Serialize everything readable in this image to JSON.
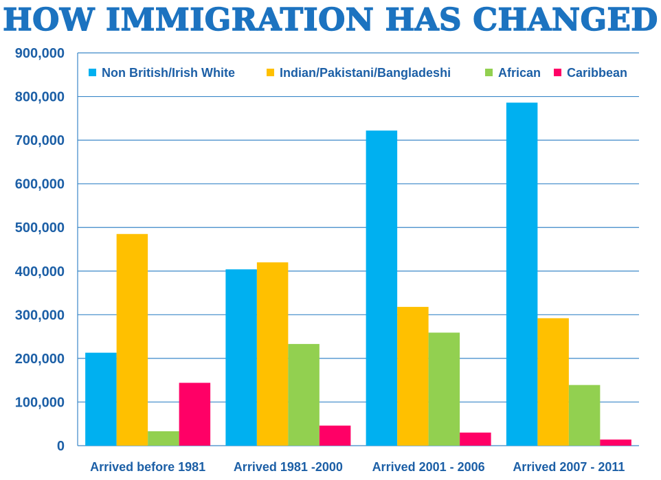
{
  "chart_data": {
    "type": "bar",
    "title": "HOW IMMIGRATION HAS CHANGED",
    "categories": [
      "Arrived before 1981",
      "Arrived 1981 -2000",
      "Arrived 2001 - 2006",
      "Arrived 2007 - 2011"
    ],
    "series": [
      {
        "name": "Non British/Irish White",
        "color": "#00b0f0",
        "values": [
          213000,
          404000,
          722000,
          786000
        ]
      },
      {
        "name": "Indian/Pakistani/Bangladeshi",
        "color": "#ffc000",
        "values": [
          485000,
          420000,
          318000,
          292000
        ]
      },
      {
        "name": "African",
        "color": "#92d050",
        "values": [
          33000,
          233000,
          259000,
          139000
        ]
      },
      {
        "name": "Caribbean",
        "color": "#ff0066",
        "values": [
          144000,
          46000,
          30000,
          14000
        ]
      }
    ],
    "ylim": [
      0,
      900000
    ],
    "yticks": [
      "0",
      "100,000",
      "200,000",
      "300,000",
      "400,000",
      "500,000",
      "600,000",
      "700,000",
      "800,000",
      "900,000"
    ],
    "grid": true,
    "gridline_color": "#3a87c8",
    "legend_position": "top",
    "title_color": "#1c73c0",
    "text_color": "#1c5fa6"
  }
}
